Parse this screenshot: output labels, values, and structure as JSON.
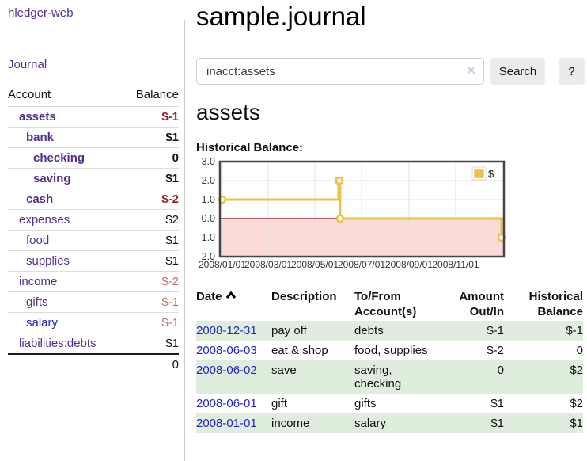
{
  "sidebar": {
    "app_title": "hledger-web",
    "journal_link": "Journal",
    "accounts_table": {
      "headers": {
        "account": "Account",
        "balance": "Balance"
      },
      "accounts": [
        {
          "name": "assets",
          "balance": "$-1",
          "depth": 1,
          "bold": true,
          "name_color": "purple",
          "balance_color": "negative"
        },
        {
          "name": "bank",
          "balance": "$1",
          "depth": 2,
          "bold": true,
          "name_color": "purple",
          "balance_color": "normal"
        },
        {
          "name": "checking",
          "balance": "0",
          "depth": 3,
          "bold": true,
          "name_color": "purple",
          "balance_color": "normal"
        },
        {
          "name": "saving",
          "balance": "$1",
          "depth": 3,
          "bold": true,
          "name_color": "purple",
          "balance_color": "normal"
        },
        {
          "name": "cash",
          "balance": "$-2",
          "depth": 2,
          "bold": true,
          "name_color": "purple",
          "balance_color": "negative"
        },
        {
          "name": "expenses",
          "balance": "$2",
          "depth": 1,
          "bold": false,
          "name_color": "purple",
          "balance_color": "normal"
        },
        {
          "name": "food",
          "balance": "$1",
          "depth": 2,
          "bold": false,
          "name_color": "purple",
          "balance_color": "normal"
        },
        {
          "name": "supplies",
          "balance": "$1",
          "depth": 2,
          "bold": false,
          "name_color": "purple",
          "balance_color": "normal"
        },
        {
          "name": "income",
          "balance": "$-2",
          "depth": 1,
          "bold": false,
          "name_color": "purple",
          "balance_color": "rose"
        },
        {
          "name": "gifts",
          "balance": "$-1",
          "depth": 2,
          "bold": false,
          "name_color": "purple",
          "balance_color": "rose"
        },
        {
          "name": "salary",
          "balance": "$-1",
          "depth": 2,
          "bold": false,
          "name_color": "blue",
          "balance_color": "rose"
        },
        {
          "name": "liabilities:debts",
          "balance": "$1",
          "depth": 1,
          "bold": false,
          "name_color": "purple",
          "balance_color": "normal"
        }
      ],
      "total": "0"
    }
  },
  "main": {
    "title": "sample.journal",
    "search": {
      "value": "inacct:assets",
      "clear_icon": "✕",
      "button_label": "Search",
      "help_label": "?"
    },
    "account_heading": "assets",
    "chart_title": "Historical Balance:"
  },
  "chart_data": {
    "type": "line",
    "step": true,
    "title": "Historical Balance:",
    "legend": [
      {
        "label": "$",
        "color": "#e9c247"
      }
    ],
    "legend_position": "top-right",
    "series": [
      {
        "name": "$",
        "color": "#e9c247",
        "points": [
          [
            "2008-01-01",
            1
          ],
          [
            "2008-06-01",
            2
          ],
          [
            "2008-06-02",
            2
          ],
          [
            "2008-06-03",
            0
          ],
          [
            "2008-12-31",
            -1
          ]
        ]
      }
    ],
    "x_ticks": [
      "2008/01/01",
      "2008/03/01",
      "2008/05/01",
      "2008/07/01",
      "2008/09/01",
      "2008/11/01"
    ],
    "y_ticks": [
      "3.0",
      "2.0",
      "1.0",
      "0.0",
      "-1.0",
      "-2.0"
    ],
    "ylim": [
      -2,
      3
    ],
    "x_range": [
      "2008-01-01",
      "2008-12-31"
    ],
    "grid": true,
    "negative_region_color": "#fbdada",
    "zero_line_color": "#8b0000"
  },
  "register": {
    "headers": {
      "date": "Date",
      "description": "Description",
      "tofrom": "To/From Account(s)",
      "amount": "Amount Out/In",
      "balance": "Historical Balance"
    },
    "sort": "date-ascending",
    "rows": [
      {
        "date": "2008-12-31",
        "description": "pay off",
        "accounts": "debts",
        "amount": "$-1",
        "amount_color": "negative",
        "balance": "$-1",
        "balance_color": "negative"
      },
      {
        "date": "2008-06-03",
        "description": "eat & shop",
        "accounts": "food, supplies",
        "amount": "$-2",
        "amount_color": "negative",
        "balance": "0",
        "balance_color": "normal"
      },
      {
        "date": "2008-06-02",
        "description": "save",
        "accounts": "saving, checking",
        "amount": "0",
        "amount_color": "normal",
        "balance": "$2",
        "balance_color": "normal"
      },
      {
        "date": "2008-06-01",
        "description": "gift",
        "accounts": "gifts",
        "amount": "$1",
        "amount_color": "normal",
        "balance": "$2",
        "balance_color": "normal"
      },
      {
        "date": "2008-01-01",
        "description": "income",
        "accounts": "salary",
        "amount": "$1",
        "amount_color": "normal",
        "balance": "$1",
        "balance_color": "normal"
      }
    ]
  },
  "colors": {
    "link_purple": "#552d90",
    "link_blue": "#2222cc",
    "negative_red": "#9c1f1f",
    "rose_red": "#c46a6a",
    "row_stripe_green": "#dfeedc",
    "chart_line_gold": "#e9c247",
    "chart_negative_pink": "#fbdada",
    "chart_zero_line": "#8b0000",
    "button_gray": "#ebebeb"
  }
}
